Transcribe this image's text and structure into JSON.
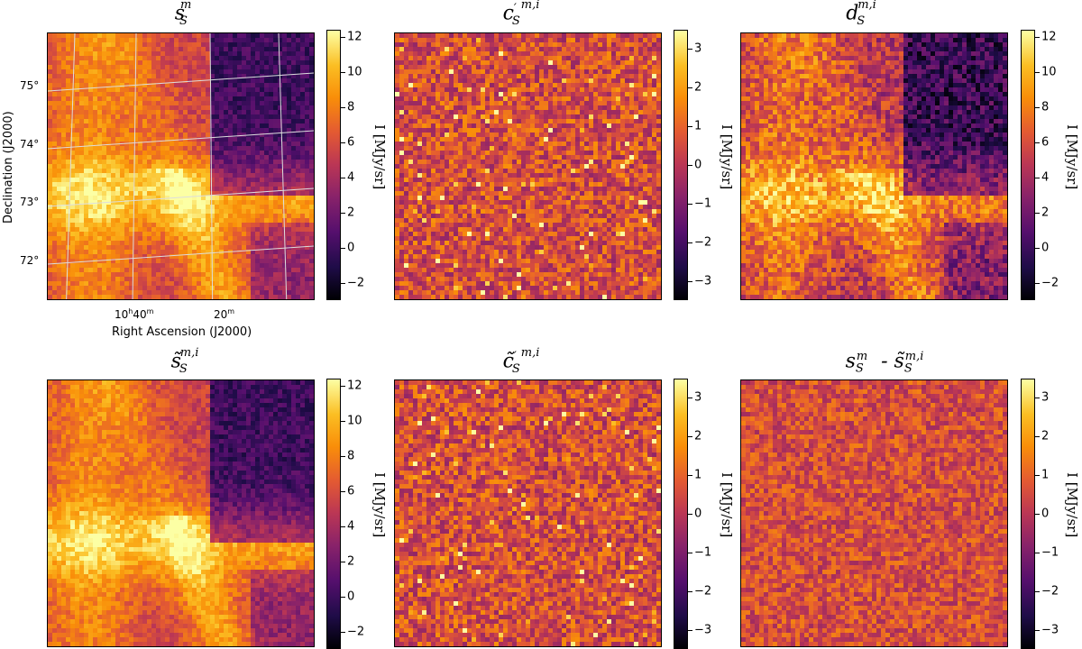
{
  "chart_data": [
    {
      "type": "heatmap",
      "title": "s_S^m",
      "colorbar": {
        "label": "I [MJy/sr]",
        "range": [
          -3,
          12.4
        ],
        "ticks": [
          "12",
          "10",
          "8",
          "6",
          "4",
          "2",
          "0",
          "−2"
        ],
        "tick_values": [
          12,
          10,
          8,
          6,
          4,
          2,
          0,
          -2
        ]
      },
      "ylabel": "Declination (J2000)",
      "xlabel": "Right Ascension (J2000)",
      "yticks": [
        "75°",
        "74°",
        "73°",
        "72°"
      ],
      "xticks": [
        "10h40m",
        "20m"
      ]
    },
    {
      "type": "heatmap",
      "title": "c′_S^{m,i}",
      "colorbar": {
        "label": "I [MJy/sr]",
        "range": [
          -3.5,
          3.5
        ],
        "ticks": [
          "3",
          "2",
          "1",
          "0",
          "−1",
          "−2",
          "−3"
        ],
        "tick_values": [
          3,
          2,
          1,
          0,
          -1,
          -2,
          -3
        ]
      }
    },
    {
      "type": "heatmap",
      "title": "d_S^{m,i}",
      "colorbar": {
        "label": "I [MJy/sr]",
        "range": [
          -3,
          12.4
        ],
        "ticks": [
          "12",
          "10",
          "8",
          "6",
          "4",
          "2",
          "0",
          "−2"
        ],
        "tick_values": [
          12,
          10,
          8,
          6,
          4,
          2,
          0,
          -2
        ]
      }
    },
    {
      "type": "heatmap",
      "title": "s̃_S^{m,i}",
      "colorbar": {
        "label": "I [MJy/sr]",
        "range": [
          -3,
          12.4
        ],
        "ticks": [
          "12",
          "10",
          "8",
          "6",
          "4",
          "2",
          "0",
          "−2"
        ],
        "tick_values": [
          12,
          10,
          8,
          6,
          4,
          2,
          0,
          -2
        ]
      }
    },
    {
      "type": "heatmap",
      "title": "c̃′_S^{m,i}",
      "colorbar": {
        "label": "I [MJy/sr]",
        "range": [
          -3.5,
          3.5
        ],
        "ticks": [
          "3",
          "2",
          "1",
          "0",
          "−1",
          "−2",
          "−3"
        ],
        "tick_values": [
          3,
          2,
          1,
          0,
          -1,
          -2,
          -3
        ]
      }
    },
    {
      "type": "heatmap",
      "title": "s_S^m - s̃_S^{m,i}",
      "colorbar": {
        "label": "I [MJy/sr]",
        "range": [
          -3.5,
          3.5
        ],
        "ticks": [
          "3",
          "2",
          "1",
          "0",
          "−1",
          "−2",
          "−3"
        ],
        "tick_values": [
          3,
          2,
          1,
          0,
          -1,
          -2,
          -3
        ]
      }
    }
  ],
  "palette": {
    "low": "#000004",
    "mid": "#ba3655",
    "high": "#fcffa4"
  }
}
